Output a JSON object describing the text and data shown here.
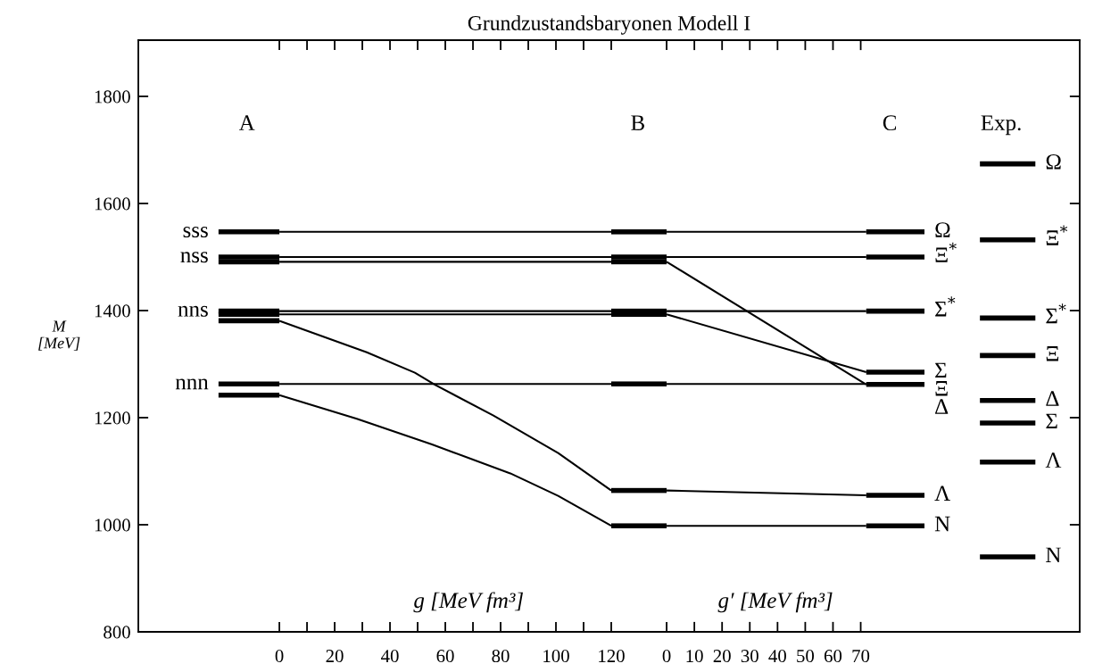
{
  "chart_data": [
    {
      "type": "line",
      "title": "Grundzustandsbaryonen Modell I",
      "ylabel": "M\n[MeV]",
      "xlabel": "g [MeV fm³]",
      "xlim": [
        -51,
        130
      ],
      "ylim": [
        800,
        1905
      ],
      "xticks": [
        0,
        {
          "value": 10,
          "label": null
        },
        20,
        {
          "value": 30,
          "label": null
        },
        40,
        {
          "value": 50,
          "label": null
        },
        60,
        {
          "value": 70,
          "label": null
        },
        80,
        {
          "value": 90,
          "label": null
        },
        100,
        {
          "value": 110,
          "label": null
        },
        120
      ],
      "yticks": [
        800,
        1000,
        1200,
        1400,
        1600,
        1800
      ],
      "series": [
        {
          "type": "step",
          "color": "#000000",
          "x": [
            -22,
            0
          ],
          "values": [
            1547,
            1547
          ]
        },
        {
          "type": "step",
          "color": "#000000",
          "x": [
            -22,
            0
          ],
          "values": [
            1500,
            1500
          ]
        },
        {
          "type": "step",
          "color": "#000000",
          "x": [
            -22,
            0
          ],
          "values": [
            1491,
            1491
          ]
        },
        {
          "type": "step",
          "color": "#000000",
          "x": [
            -22,
            0
          ],
          "values": [
            1399,
            1399
          ]
        },
        {
          "type": "step",
          "color": "#000000",
          "x": [
            -22,
            0
          ],
          "values": [
            1393,
            1393
          ]
        },
        {
          "type": "step",
          "color": "#000000",
          "x": [
            -22,
            0
          ],
          "values": [
            1381,
            1381
          ]
        },
        {
          "type": "step",
          "color": "#000000",
          "x": [
            -22,
            0
          ],
          "values": [
            1263,
            1263
          ]
        },
        {
          "type": "step",
          "color": "#000000",
          "x": [
            -22,
            0
          ],
          "values": [
            1242,
            1242
          ]
        },
        {
          "type": "step",
          "color": "#000000",
          "x": [
            120,
            130
          ],
          "values": [
            1547,
            1547
          ]
        },
        {
          "type": "step",
          "color": "#000000",
          "x": [
            120,
            130
          ],
          "values": [
            1500,
            1500
          ]
        },
        {
          "type": "step",
          "color": "#000000",
          "x": [
            120,
            130
          ],
          "values": [
            1491,
            1491
          ]
        },
        {
          "type": "step",
          "color": "#000000",
          "x": [
            120,
            130
          ],
          "values": [
            1399,
            1399
          ]
        },
        {
          "type": "step",
          "color": "#000000",
          "x": [
            120,
            130
          ],
          "values": [
            1393,
            1393
          ]
        },
        {
          "type": "step",
          "color": "#000000",
          "x": [
            120,
            130
          ],
          "values": [
            1263,
            1263
          ]
        },
        {
          "type": "step",
          "color": "#000000",
          "x": [
            120,
            130
          ],
          "values": [
            1064,
            1064
          ]
        },
        {
          "type": "step",
          "color": "#000000",
          "x": [
            120,
            130
          ],
          "values": [
            998,
            998
          ]
        },
        {
          "color": "#000000",
          "x": [
            0,
            120
          ],
          "values": [
            1547,
            1547
          ]
        },
        {
          "color": "#000000",
          "x": [
            0,
            120
          ],
          "values": [
            1500,
            1500
          ]
        },
        {
          "color": "#000000",
          "x": [
            0,
            120
          ],
          "values": [
            1491,
            1491
          ]
        },
        {
          "color": "#000000",
          "x": [
            0,
            120
          ],
          "values": [
            1399,
            1399
          ]
        },
        {
          "color": "#000000",
          "x": [
            0,
            120
          ],
          "values": [
            1393,
            1393
          ]
        },
        {
          "color": "#000000",
          "x": [
            0,
            120
          ],
          "values": [
            1263,
            1263
          ]
        },
        {
          "color": "#000000",
          "x": [
            0,
            31.6,
            49,
            56.4,
            77.4,
            100.8,
            120
          ],
          "values": [
            1381,
            1322,
            1284,
            1261,
            1204,
            1134,
            1064
          ]
        },
        {
          "color": "#000000",
          "x": [
            0,
            28,
            55.2,
            83.5,
            100.8,
            120
          ],
          "values": [
            1242,
            1198,
            1150,
            1096,
            1054,
            998
          ]
        }
      ],
      "annotations": [
        "A",
        "B",
        {
          "text": "sss",
          "x": -22,
          "y": 1547
        },
        {
          "text": "nss",
          "x": -22,
          "y": 1500
        },
        {
          "text": "nns",
          "x": -22,
          "y": 1399
        },
        {
          "text": "nnn",
          "x": -22,
          "y": 1263
        }
      ]
    },
    {
      "type": "line",
      "xlabel": "g′ [MeV fm³]",
      "tick_labels": "x",
      "xlim": [
        -10,
        149
      ],
      "ylim": [
        800,
        1905
      ],
      "xticks": [
        0,
        10,
        20,
        30,
        40,
        50,
        60,
        70
      ],
      "yticks": [
        {
          "value": 800,
          "label": null
        },
        {
          "value": 1000,
          "label": null
        },
        {
          "value": 1200,
          "label": null
        },
        {
          "value": 1400,
          "label": null
        },
        {
          "value": 1600,
          "label": null
        },
        {
          "value": 1800,
          "label": null
        }
      ],
      "series": [
        {
          "type": "step",
          "color": "#000000",
          "x": [
            -10,
            0
          ],
          "values": [
            1547,
            1547
          ]
        },
        {
          "type": "step",
          "color": "#000000",
          "x": [
            -10,
            0
          ],
          "values": [
            1500,
            1500
          ]
        },
        {
          "type": "step",
          "color": "#000000",
          "x": [
            -10,
            0
          ],
          "values": [
            1491,
            1491
          ]
        },
        {
          "type": "step",
          "color": "#000000",
          "x": [
            -10,
            0
          ],
          "values": [
            1399,
            1399
          ]
        },
        {
          "type": "step",
          "color": "#000000",
          "x": [
            -10,
            0
          ],
          "values": [
            1393,
            1393
          ]
        },
        {
          "type": "step",
          "color": "#000000",
          "x": [
            -10,
            0
          ],
          "values": [
            1263,
            1263
          ]
        },
        {
          "type": "step",
          "color": "#000000",
          "x": [
            -10,
            0
          ],
          "values": [
            1064,
            1064
          ]
        },
        {
          "type": "step",
          "color": "#000000",
          "x": [
            -10,
            0
          ],
          "values": [
            998,
            998
          ]
        },
        {
          "type": "step",
          "color": "#000000",
          "x": [
            72,
            93
          ],
          "values": [
            1547,
            1547
          ]
        },
        {
          "type": "step",
          "color": "#000000",
          "x": [
            72,
            93
          ],
          "values": [
            1500,
            1500
          ]
        },
        {
          "type": "step",
          "color": "#000000",
          "x": [
            72,
            93
          ],
          "values": [
            1399,
            1399
          ]
        },
        {
          "type": "step",
          "color": "#000000",
          "x": [
            72,
            93
          ],
          "values": [
            1285,
            1285
          ]
        },
        {
          "type": "step",
          "color": "#000000",
          "x": [
            72,
            93
          ],
          "values": [
            1262,
            1262
          ]
        },
        {
          "type": "step",
          "color": "#000000",
          "x": [
            72,
            93
          ],
          "values": [
            1055,
            1055
          ]
        },
        {
          "type": "step",
          "color": "#000000",
          "x": [
            72,
            93
          ],
          "values": [
            998,
            998
          ]
        },
        {
          "type": "step",
          "color": "#000000",
          "x": [
            113,
            133
          ],
          "values": [
            1674,
            1674
          ]
        },
        {
          "type": "step",
          "color": "#000000",
          "x": [
            113,
            133
          ],
          "values": [
            1532,
            1532
          ]
        },
        {
          "type": "step",
          "color": "#000000",
          "x": [
            113,
            133
          ],
          "values": [
            1386,
            1386
          ]
        },
        {
          "type": "step",
          "color": "#000000",
          "x": [
            113,
            133
          ],
          "values": [
            1316,
            1316
          ]
        },
        {
          "type": "step",
          "color": "#000000",
          "x": [
            113,
            133
          ],
          "values": [
            1232,
            1232
          ]
        },
        {
          "type": "step",
          "color": "#000000",
          "x": [
            113,
            133
          ],
          "values": [
            1190,
            1190
          ]
        },
        {
          "type": "step",
          "color": "#000000",
          "x": [
            113,
            133
          ],
          "values": [
            1117,
            1117
          ]
        },
        {
          "type": "step",
          "color": "#000000",
          "x": [
            113,
            133
          ],
          "values": [
            940,
            940
          ]
        },
        {
          "color": "#000000",
          "x": [
            0,
            72
          ],
          "values": [
            1547,
            1547
          ]
        },
        {
          "color": "#000000",
          "x": [
            0,
            72
          ],
          "values": [
            1500,
            1500
          ]
        },
        {
          "color": "#000000",
          "x": [
            0,
            72
          ],
          "values": [
            1491,
            1262
          ]
        },
        {
          "color": "#000000",
          "x": [
            0,
            72
          ],
          "values": [
            1399,
            1399
          ]
        },
        {
          "color": "#000000",
          "x": [
            0,
            72
          ],
          "values": [
            1393,
            1285
          ]
        },
        {
          "color": "#000000",
          "x": [
            0,
            72
          ],
          "values": [
            1263,
            1263
          ]
        },
        {
          "color": "#000000",
          "x": [
            0,
            72
          ],
          "values": [
            1064,
            1055
          ]
        },
        {
          "color": "#000000",
          "x": [
            0,
            72
          ],
          "values": [
            998,
            998
          ]
        }
      ],
      "annotations": [
        "C",
        "Exp.",
        {
          "text": "Ω",
          "x": 93,
          "y": 1547
        },
        {
          "text": "Ξ$^{*}$",
          "x": 93,
          "y": 1500
        },
        {
          "text": "Σ$^{*}$",
          "x": 93,
          "y": 1399
        },
        {
          "text": "Σ",
          "x": 93,
          "y": 1285
        },
        {
          "text": "Ξ",
          "x": 93,
          "y": 1262
        },
        {
          "text": "Δ",
          "x": 93,
          "y": 1262
        },
        {
          "text": "Λ",
          "x": 93,
          "y": 1055
        },
        {
          "text": "N",
          "x": 93,
          "y": 998
        },
        {
          "text": "Ω",
          "x": 133,
          "y": 1674
        },
        {
          "text": "Ξ$^{*}$",
          "x": 133,
          "y": 1532
        },
        {
          "text": "Σ$^{*}$",
          "x": 133,
          "y": 1386
        },
        {
          "text": "Ξ",
          "x": 133,
          "y": 1316
        },
        {
          "text": "Δ",
          "x": 133,
          "y": 1232
        },
        {
          "text": "Σ",
          "x": 133,
          "y": 1190
        },
        {
          "text": "Λ",
          "x": 133,
          "y": 1117
        },
        {
          "text": "N",
          "x": 133,
          "y": 940
        }
      ]
    }
  ]
}
